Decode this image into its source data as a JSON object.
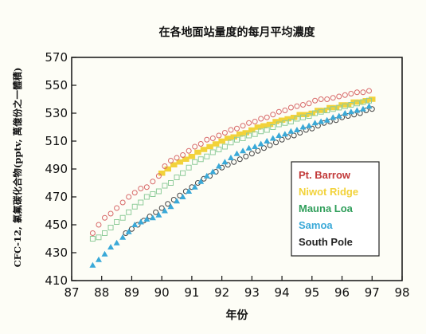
{
  "chart_data": {
    "type": "scatter",
    "title": "在各地面站量度的每月平均濃度",
    "xlabel": "年份",
    "ylabel": "CFC-12, 氯氟碳化合物(pptv, 萬億份之一體積)",
    "xlim": [
      87,
      98
    ],
    "ylim": [
      410,
      570
    ],
    "xticks": [
      "87",
      "88",
      "89",
      "90",
      "91",
      "92",
      "93",
      "94",
      "95",
      "96",
      "97",
      "98"
    ],
    "yticks": [
      "410",
      "430",
      "450",
      "470",
      "490",
      "510",
      "530",
      "550",
      "570"
    ],
    "grid": false,
    "legend_position": "lower-right",
    "series": [
      {
        "name": "Pt. Barrow",
        "color": "#d86a6a",
        "marker": "circle-open",
        "x": [
          87.7,
          87.9,
          88.1,
          88.3,
          88.5,
          88.7,
          88.9,
          89.1,
          89.3,
          89.5,
          89.7,
          89.9,
          90.1,
          90.3,
          90.5,
          90.7,
          90.9,
          91.1,
          91.3,
          91.5,
          91.7,
          91.9,
          92.1,
          92.3,
          92.5,
          92.7,
          92.9,
          93.1,
          93.3,
          93.5,
          93.7,
          93.9,
          94.1,
          94.3,
          94.5,
          94.7,
          94.9,
          95.1,
          95.3,
          95.5,
          95.7,
          95.9,
          96.1,
          96.3,
          96.5,
          96.7,
          96.9
        ],
        "y": [
          444,
          450,
          455,
          458,
          462,
          466,
          470,
          473,
          476,
          477,
          481,
          485,
          492,
          496,
          498,
          500,
          503,
          506,
          508,
          511,
          512,
          514,
          516,
          518,
          519,
          521,
          523,
          524,
          526,
          527,
          529,
          531,
          532,
          534,
          535,
          536,
          537,
          539,
          540,
          540,
          541,
          542,
          543,
          544,
          545,
          545,
          546
        ]
      },
      {
        "name": "Niwot Ridge",
        "color": "#f2d23a",
        "marker": "square-filled",
        "x": [
          90.0,
          90.2,
          90.4,
          90.6,
          90.8,
          91.0,
          91.2,
          91.4,
          91.6,
          91.8,
          92.0,
          92.2,
          92.4,
          92.6,
          92.8,
          93.0,
          93.2,
          93.4,
          93.6,
          93.8,
          94.0,
          94.2,
          94.4,
          94.6,
          94.8,
          95.0,
          95.2,
          95.4,
          95.6,
          95.8,
          96.0,
          96.2,
          96.4,
          96.6,
          96.8,
          97.0
        ],
        "y": [
          487,
          490,
          493,
          495,
          497,
          499,
          502,
          504,
          506,
          508,
          510,
          512,
          513,
          515,
          516,
          518,
          520,
          521,
          522,
          524,
          525,
          526,
          527,
          529,
          529,
          530,
          532,
          532,
          534,
          534,
          536,
          536,
          538,
          538,
          539,
          540
        ]
      },
      {
        "name": "Mauna Loa",
        "color": "#8fcc9a",
        "marker": "square-open",
        "x": [
          87.7,
          87.9,
          88.1,
          88.3,
          88.5,
          88.7,
          88.9,
          89.1,
          89.3,
          89.5,
          89.7,
          89.9,
          90.1,
          90.3,
          90.5,
          90.7,
          90.9,
          91.1,
          91.3,
          91.5,
          91.7,
          91.9,
          92.1,
          92.3,
          92.5,
          92.7,
          92.9,
          93.1,
          93.3,
          93.5,
          93.7,
          93.9,
          94.1,
          94.3,
          94.5,
          94.7,
          94.9,
          95.1,
          95.3,
          95.5,
          95.7,
          95.9,
          96.1,
          96.3,
          96.5,
          96.7,
          96.9
        ],
        "y": [
          440,
          441,
          444,
          448,
          452,
          455,
          459,
          463,
          466,
          470,
          472,
          474,
          478,
          480,
          484,
          487,
          491,
          495,
          497,
          499,
          502,
          504,
          506,
          509,
          511,
          512,
          514,
          515,
          517,
          518,
          520,
          522,
          523,
          524,
          526,
          527,
          528,
          530,
          531,
          532,
          533,
          534,
          535,
          536,
          537,
          538,
          539
        ]
      },
      {
        "name": "Samoa",
        "color": "#3aa9d8",
        "marker": "triangle-filled",
        "x": [
          87.7,
          87.9,
          88.1,
          88.3,
          88.5,
          88.7,
          88.9,
          89.1,
          89.3,
          89.5,
          89.7,
          89.9,
          90.1,
          90.3,
          90.5,
          90.7,
          90.9,
          91.1,
          91.3,
          91.5,
          91.7,
          91.9,
          92.1,
          92.3,
          92.5,
          92.7,
          92.9,
          93.1,
          93.3,
          93.5,
          93.7,
          93.9,
          94.1,
          94.3,
          94.5,
          94.7,
          94.9,
          95.1,
          95.3,
          95.5,
          95.7,
          95.9,
          96.1,
          96.3,
          96.5,
          96.7,
          96.9
        ],
        "y": [
          421,
          425,
          429,
          434,
          437,
          441,
          445,
          450,
          452,
          454,
          455,
          457,
          460,
          463,
          467,
          470,
          474,
          477,
          481,
          485,
          488,
          492,
          495,
          498,
          501,
          503,
          505,
          506,
          508,
          510,
          512,
          514,
          515,
          517,
          518,
          520,
          521,
          523,
          524,
          525,
          527,
          528,
          530,
          531,
          532,
          533,
          535
        ]
      },
      {
        "name": "South Pole",
        "color": "#444444",
        "marker": "circle-open",
        "x": [
          88.8,
          89.0,
          89.2,
          89.4,
          89.6,
          89.8,
          90.0,
          90.2,
          90.4,
          90.6,
          90.8,
          91.0,
          91.2,
          91.4,
          91.6,
          91.8,
          92.0,
          92.2,
          92.4,
          92.6,
          92.8,
          93.0,
          93.2,
          93.4,
          93.6,
          93.8,
          94.0,
          94.2,
          94.4,
          94.6,
          94.8,
          95.0,
          95.2,
          95.4,
          95.6,
          95.8,
          96.0,
          96.2,
          96.4,
          96.6,
          96.8,
          97.0
        ],
        "y": [
          444,
          447,
          450,
          453,
          456,
          459,
          462,
          465,
          468,
          471,
          474,
          477,
          480,
          483,
          485,
          488,
          491,
          493,
          495,
          497,
          499,
          501,
          503,
          505,
          507,
          509,
          511,
          513,
          514,
          516,
          518,
          519,
          521,
          523,
          524,
          525,
          527,
          528,
          529,
          530,
          532,
          533
        ]
      }
    ]
  }
}
